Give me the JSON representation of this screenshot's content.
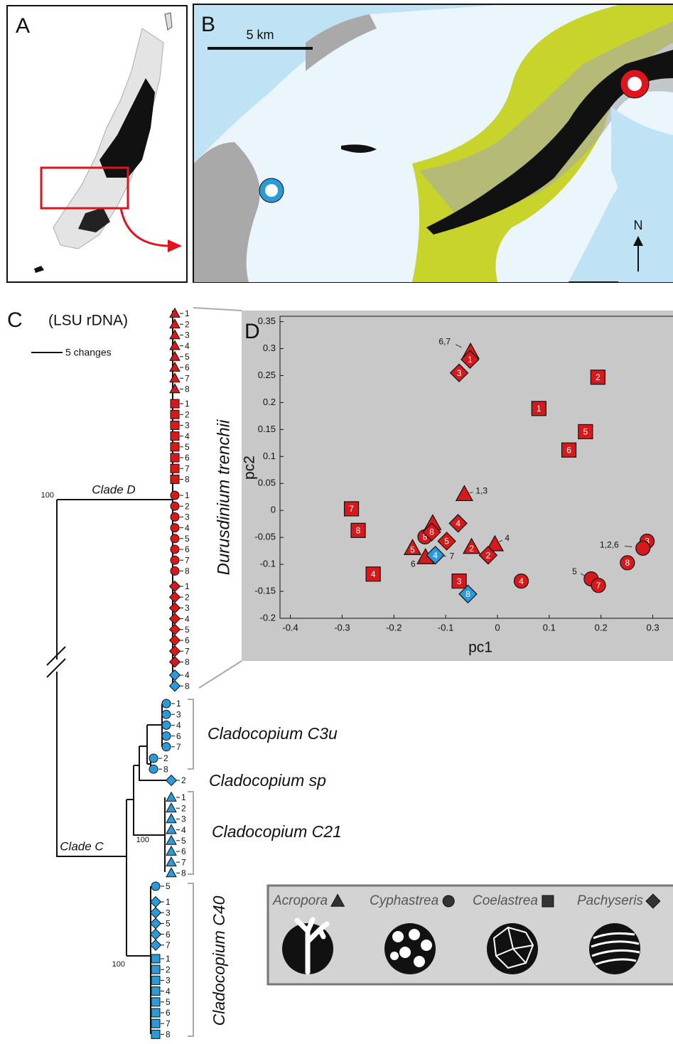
{
  "panels": {
    "a": "A",
    "b": "B",
    "c": "C",
    "d": "D"
  },
  "map": {
    "scale_bar": "5 km",
    "north": "N"
  },
  "tree": {
    "marker": "(LSU rDNA)",
    "scale_bar": "5 changes",
    "clade_d": "Clade D",
    "clade_c": "Clade C",
    "bootstrap": [
      "100",
      "100",
      "100"
    ],
    "taxa": [
      "Durusdinium trenchii",
      "Cladocopium C3u",
      "Cladocopium sp",
      "Cladocopium C21",
      "Cladocopium C40"
    ],
    "tip_groups": [
      {
        "shape": "triangle",
        "color": "#d7191c",
        "tips": [
          "1",
          "2",
          "3",
          "4",
          "5",
          "6",
          "7",
          "8"
        ]
      },
      {
        "shape": "square",
        "color": "#d7191c",
        "tips": [
          "1",
          "2",
          "3",
          "4",
          "5",
          "6",
          "7",
          "8"
        ]
      },
      {
        "shape": "circle",
        "color": "#d7191c",
        "tips": [
          "1",
          "2",
          "3",
          "4",
          "5",
          "6",
          "7",
          "8"
        ]
      },
      {
        "shape": "diamond",
        "color": "#d7191c",
        "tips": [
          "1",
          "2",
          "3",
          "4",
          "5",
          "6",
          "7",
          "8"
        ]
      },
      {
        "shape": "diamond",
        "color": "#2b9ad8",
        "tips": [
          "4",
          "8"
        ]
      },
      {
        "shape": "circle",
        "color": "#2b9ad8",
        "tips": [
          "1",
          "3",
          "4",
          "6",
          "7"
        ]
      },
      {
        "shape": "circle",
        "color": "#2b9ad8",
        "tips": [
          "2",
          "8"
        ]
      },
      {
        "shape": "diamond",
        "color": "#2b9ad8",
        "tips": [
          "2"
        ]
      },
      {
        "shape": "triangle",
        "color": "#2b9ad8",
        "tips": [
          "1",
          "2",
          "3",
          "4",
          "5",
          "6",
          "7",
          "8"
        ]
      },
      {
        "shape": "circle",
        "color": "#2b9ad8",
        "tips": [
          "5"
        ]
      },
      {
        "shape": "diamond",
        "color": "#2b9ad8",
        "tips": [
          "1",
          "3",
          "5",
          "6",
          "7"
        ]
      },
      {
        "shape": "square",
        "color": "#2b9ad8",
        "tips": [
          "1",
          "2",
          "3",
          "4",
          "5",
          "6",
          "7",
          "8"
        ]
      }
    ]
  },
  "chart_data": {
    "type": "scatter",
    "xlabel": "pc1",
    "ylabel": "pc2",
    "xlim": [
      -0.42,
      0.34
    ],
    "ylim": [
      -0.2,
      0.36
    ],
    "xticks": [
      -0.4,
      -0.3,
      -0.2,
      -0.1,
      0,
      0.1,
      0.2,
      0.3
    ],
    "yticks": [
      -0.2,
      -0.15,
      -0.1,
      -0.05,
      0,
      0.05,
      0.1,
      0.15,
      0.2,
      0.25,
      0.3,
      0.35
    ],
    "series": [
      {
        "name": "Acropora",
        "marker": "triangle",
        "x": [
          -0.052,
          -0.064,
          -0.164,
          -0.125,
          -0.139,
          -0.05,
          -0.005
        ],
        "values": [
          0.294,
          0.03,
          -0.07,
          -0.024,
          -0.087,
          -0.068,
          -0.063
        ],
        "labels": [
          null,
          null,
          "5",
          null,
          null,
          "2",
          null
        ],
        "notes": [
          "6,7",
          "1,3",
          null,
          null,
          "6",
          null,
          "4"
        ],
        "colors": [
          "#d7191c",
          "#d7191c",
          "#d7191c",
          "#d7191c",
          "#d7191c",
          "#d7191c",
          "#d7191c"
        ]
      },
      {
        "name": "Cyphastrea",
        "marker": "circle",
        "x": [
          -0.14,
          0.046,
          0.181,
          0.195,
          0.251,
          0.289,
          0.281
        ],
        "values": [
          -0.049,
          -0.131,
          -0.127,
          -0.139,
          -0.097,
          -0.057,
          -0.07
        ],
        "labels": [
          "8",
          "4",
          null,
          "7",
          "8",
          "3",
          null
        ],
        "notes": [
          null,
          null,
          "5",
          null,
          null,
          null,
          "1,2,6"
        ],
        "colors": [
          "#d7191c",
          "#d7191c",
          "#d7191c",
          "#d7191c",
          "#d7191c",
          "#d7191c",
          "#d7191c"
        ]
      },
      {
        "name": "Coelastrea",
        "marker": "square",
        "x": [
          0.194,
          0.08,
          0.17,
          0.138,
          -0.282,
          -0.269,
          -0.24,
          -0.074
        ],
        "values": [
          0.247,
          0.189,
          0.146,
          0.112,
          0.003,
          -0.037,
          -0.118,
          -0.131
        ],
        "labels": [
          "2",
          "1",
          "5",
          "6",
          "7",
          "8",
          "4",
          "3"
        ],
        "notes": [
          null,
          null,
          null,
          null,
          null,
          null,
          null,
          null
        ],
        "colors": [
          "#d7191c",
          "#d7191c",
          "#d7191c",
          "#d7191c",
          "#d7191c",
          "#d7191c",
          "#d7191c",
          "#d7191c"
        ]
      },
      {
        "name": "Pachyseris",
        "marker": "diamond",
        "x": [
          -0.053,
          -0.074,
          -0.127,
          -0.076,
          -0.098,
          -0.018,
          -0.12,
          -0.057
        ],
        "values": [
          0.28,
          0.255,
          -0.04,
          -0.024,
          -0.057,
          -0.083,
          -0.083,
          -0.155
        ],
        "labels": [
          "1",
          "3",
          "8",
          "4",
          "5",
          "2",
          "4",
          "8"
        ],
        "notes": [
          null,
          null,
          null,
          null,
          null,
          null,
          "7",
          null
        ],
        "colors": [
          "#d7191c",
          "#d7191c",
          "#d7191c",
          "#d7191c",
          "#d7191c",
          "#d7191c",
          "#2b9ad8",
          "#2b9ad8"
        ]
      }
    ]
  }
}
